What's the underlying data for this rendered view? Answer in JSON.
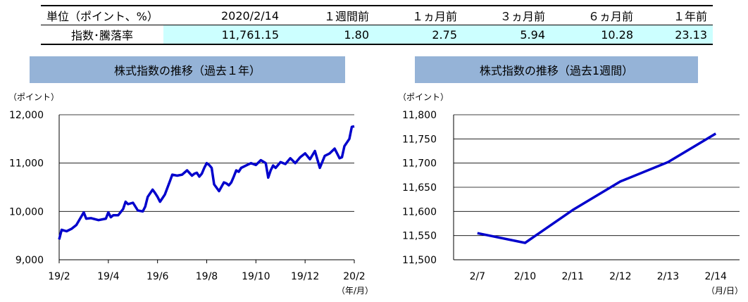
{
  "table": {
    "header": [
      "単位（ポイント、%）",
      "2020/2/14",
      "１週間前",
      "１ヵ月前",
      "３ヵ月前",
      "６ヵ月前",
      "１年前"
    ],
    "row": [
      "指数･騰落率",
      "11,761.15",
      "1.80",
      "2.75",
      "5.94",
      "10.28",
      "23.13"
    ]
  },
  "colors": {
    "line": "#0000cc",
    "title_band": "#95b3d7",
    "value_cell": "#ccffff"
  },
  "chart_data": [
    {
      "type": "line",
      "title": "株式指数の推移（過去１年）",
      "ylabel": "（ポイント）",
      "xlabel": "（年/月）",
      "ylim": [
        9000,
        12000
      ],
      "yticks": [
        "9,000",
        "10,000",
        "11,000",
        "12,000"
      ],
      "xticks": [
        "19/2",
        "19/4",
        "19/6",
        "19/8",
        "19/10",
        "19/12",
        "20/2"
      ],
      "x_range": [
        "19/2",
        "20/2"
      ],
      "series": [
        {
          "x": [
            0,
            0.1,
            0.3,
            0.5,
            0.7,
            1.0,
            1.1,
            1.3,
            1.6,
            1.9,
            2.0,
            2.1,
            2.2,
            2.4,
            2.6,
            2.7,
            2.8,
            3.0,
            3.2,
            3.4,
            3.5,
            3.6,
            3.8,
            3.9,
            4.0,
            4.1,
            4.3,
            4.5,
            4.6,
            4.8,
            5.0,
            5.2,
            5.4,
            5.5,
            5.6,
            5.7,
            5.8,
            5.9,
            6.0,
            6.1,
            6.2,
            6.3,
            6.5,
            6.7,
            6.8,
            6.9,
            7.0,
            7.1,
            7.2,
            7.3,
            7.4,
            7.6,
            7.8,
            8.0,
            8.2,
            8.4,
            8.5,
            8.6,
            8.7,
            8.8,
            9.0,
            9.2,
            9.4,
            9.6,
            9.8,
            10.0,
            10.2,
            10.4,
            10.6,
            10.8,
            11.0,
            11.2,
            11.4,
            11.5,
            11.6,
            11.8,
            11.9,
            12.0
          ],
          "y": [
            9420,
            9620,
            9590,
            9640,
            9720,
            9980,
            9850,
            9860,
            9820,
            9850,
            9980,
            9880,
            9920,
            9920,
            10050,
            10200,
            10150,
            10180,
            10020,
            10000,
            10100,
            10300,
            10450,
            10380,
            10300,
            10200,
            10350,
            10620,
            10760,
            10740,
            10760,
            10850,
            10740,
            10780,
            10800,
            10720,
            10780,
            10900,
            11000,
            10960,
            10900,
            10560,
            10420,
            10600,
            10580,
            10540,
            10600,
            10720,
            10850,
            10820,
            10900,
            10950,
            11000,
            10960,
            11060,
            11000,
            10700,
            10850,
            10950,
            10900,
            11020,
            10980,
            11100,
            11000,
            11120,
            11200,
            11080,
            11250,
            10900,
            11150,
            11200,
            11300,
            11100,
            11120,
            11350,
            11500,
            11750,
            11761
          ]
        }
      ]
    },
    {
      "type": "line",
      "title": "株式指数の推移（過去1週間）",
      "ylabel": "（ポイント）",
      "xlabel": "（月/日）",
      "ylim": [
        11500,
        11800
      ],
      "yticks": [
        "11,500",
        "11,550",
        "11,600",
        "11,650",
        "11,700",
        "11,750",
        "11,800"
      ],
      "categories": [
        "2/7",
        "2/10",
        "2/11",
        "2/12",
        "2/13",
        "2/14"
      ],
      "series": [
        {
          "values": [
            11555,
            11535,
            11603,
            11662,
            11702,
            11761
          ]
        }
      ]
    }
  ]
}
